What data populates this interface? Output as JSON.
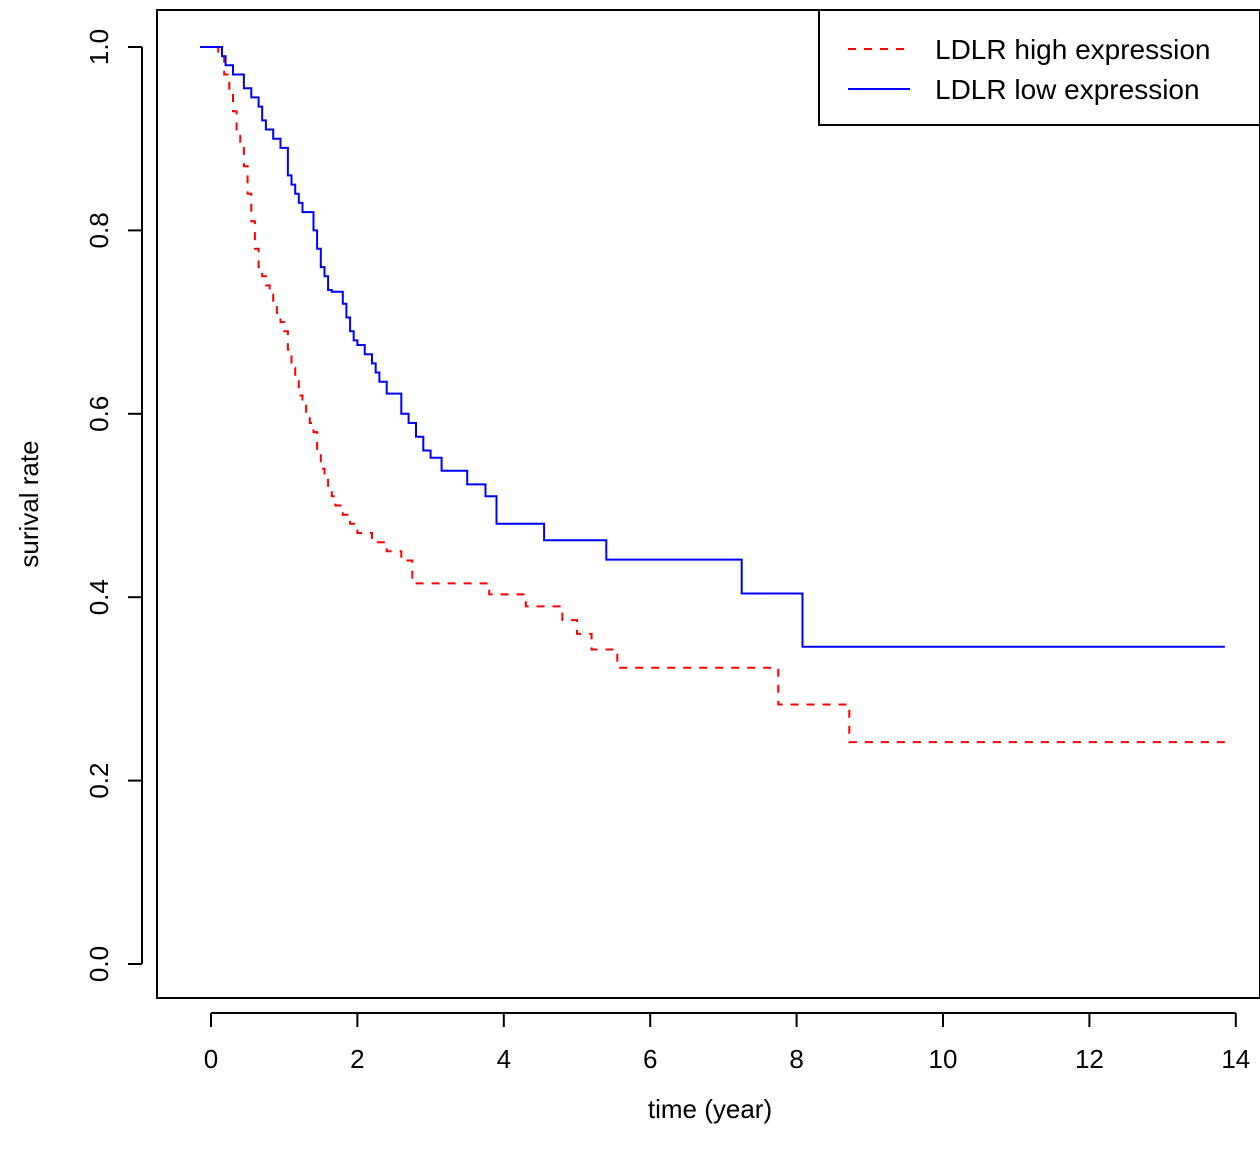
{
  "chart_data": {
    "type": "line",
    "title": "",
    "xlabel": "time (year)",
    "ylabel": "surival rate",
    "xlim": [
      -0.5,
      14.1
    ],
    "ylim": [
      -0.04,
      1.04
    ],
    "xticks": [
      0,
      2,
      4,
      6,
      8,
      10,
      12,
      14
    ],
    "yticks": [
      0.0,
      0.2,
      0.4,
      0.6,
      0.8,
      1.0
    ],
    "xtick_labels": [
      "0",
      "2",
      "4",
      "6",
      "8",
      "10",
      "12",
      "14"
    ],
    "ytick_labels": [
      "0.0",
      "0.2",
      "0.4",
      "0.6",
      "0.8",
      "1.0"
    ],
    "grid": false,
    "legend_position": "top-right",
    "step": true,
    "series": [
      {
        "name": "LDLR high expression",
        "color": "#ff0000",
        "dash": "dashed",
        "x": [
          -0.15,
          0.1,
          0.18,
          0.25,
          0.3,
          0.35,
          0.4,
          0.45,
          0.5,
          0.55,
          0.6,
          0.65,
          0.7,
          0.75,
          0.8,
          0.85,
          0.9,
          0.95,
          1.0,
          1.05,
          1.1,
          1.15,
          1.2,
          1.25,
          1.3,
          1.35,
          1.4,
          1.45,
          1.5,
          1.55,
          1.6,
          1.65,
          1.7,
          1.8,
          1.9,
          2.0,
          2.2,
          2.4,
          2.6,
          2.75,
          3.8,
          4.3,
          4.8,
          5.0,
          5.2,
          5.55,
          7.75,
          8.72,
          13.85
        ],
        "y": [
          1.0,
          0.99,
          0.97,
          0.95,
          0.93,
          0.91,
          0.89,
          0.87,
          0.84,
          0.81,
          0.78,
          0.76,
          0.75,
          0.74,
          0.73,
          0.72,
          0.71,
          0.7,
          0.69,
          0.67,
          0.65,
          0.64,
          0.62,
          0.61,
          0.6,
          0.59,
          0.58,
          0.56,
          0.54,
          0.53,
          0.52,
          0.51,
          0.5,
          0.49,
          0.48,
          0.47,
          0.46,
          0.45,
          0.44,
          0.415,
          0.403,
          0.39,
          0.375,
          0.36,
          0.343,
          0.323,
          0.283,
          0.242,
          0.242
        ]
      },
      {
        "name": "LDLR low expression",
        "color": "#0000ff",
        "dash": "solid",
        "x": [
          -0.15,
          0.15,
          0.2,
          0.3,
          0.45,
          0.55,
          0.65,
          0.7,
          0.75,
          0.85,
          0.95,
          1.05,
          1.1,
          1.15,
          1.2,
          1.25,
          1.3,
          1.4,
          1.45,
          1.5,
          1.55,
          1.6,
          1.65,
          1.7,
          1.8,
          1.85,
          1.9,
          1.95,
          2.0,
          2.1,
          2.2,
          2.25,
          2.3,
          2.4,
          2.6,
          2.7,
          2.8,
          2.9,
          3.0,
          3.15,
          3.5,
          3.75,
          3.9,
          4.55,
          5.4,
          7.25,
          8.08,
          13.85
        ],
        "y": [
          1.0,
          0.99,
          0.98,
          0.97,
          0.955,
          0.945,
          0.935,
          0.92,
          0.91,
          0.9,
          0.89,
          0.86,
          0.85,
          0.84,
          0.83,
          0.82,
          0.82,
          0.8,
          0.78,
          0.76,
          0.75,
          0.735,
          0.733,
          0.733,
          0.72,
          0.705,
          0.69,
          0.68,
          0.675,
          0.665,
          0.655,
          0.645,
          0.635,
          0.622,
          0.6,
          0.59,
          0.575,
          0.56,
          0.552,
          0.538,
          0.523,
          0.51,
          0.48,
          0.462,
          0.441,
          0.404,
          0.346,
          0.346
        ]
      }
    ]
  }
}
